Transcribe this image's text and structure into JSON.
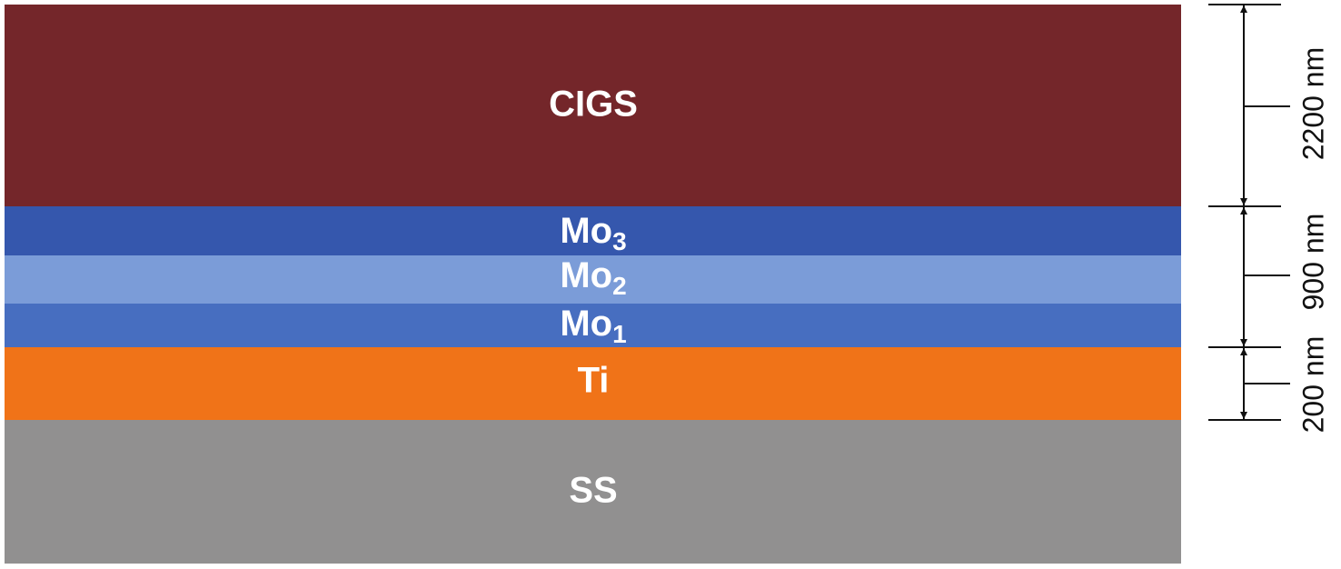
{
  "layers": [
    {
      "label": "CIGS"
    },
    {
      "label": "Mo",
      "subscript": "3"
    },
    {
      "label": "Mo",
      "subscript": "2"
    },
    {
      "label": "Mo",
      "subscript": "1"
    },
    {
      "label": "Ti"
    },
    {
      "label": "SS"
    }
  ],
  "dimensions": [
    {
      "label": "2200 nm"
    },
    {
      "label": "900 nm"
    },
    {
      "label": "200 nm"
    }
  ]
}
